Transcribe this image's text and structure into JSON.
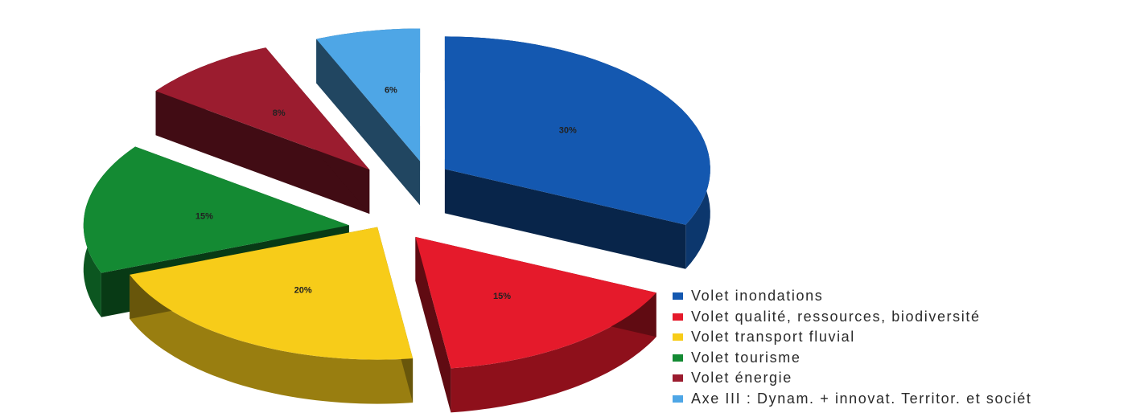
{
  "chart_data": {
    "type": "pie",
    "title": "",
    "legend_position": "bottom-right",
    "labels": [
      "Volet inondations",
      "Volet qualité, ressources, biodiversité",
      "Volet transport fluvial",
      "Volet tourisme",
      "Volet énergie",
      "Axe III : Dynam. + innovat. Territor. et sociét"
    ],
    "values": [
      30,
      15,
      20,
      15,
      8,
      6
    ],
    "data_labels": [
      "30%",
      "15%",
      "20%",
      "15%",
      "8%",
      "6%"
    ],
    "colors": [
      "#1458b0",
      "#e51a2b",
      "#f7cc19",
      "#148a33",
      "#9b1c2f",
      "#4ea6e6"
    ],
    "style": "3d-exploded"
  }
}
